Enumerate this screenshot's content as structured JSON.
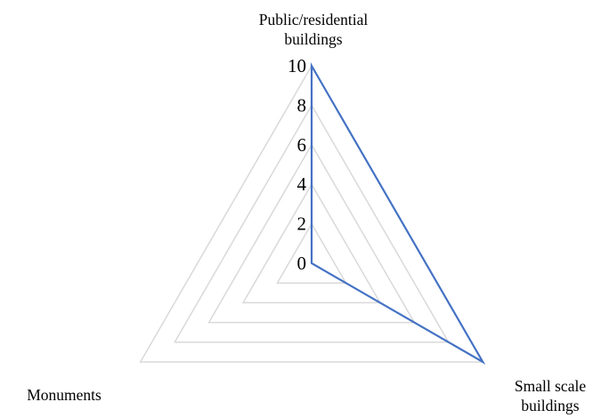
{
  "chart_data": {
    "type": "radar",
    "categories": [
      "Public/residential buildings",
      "Small scale buildings",
      "Monuments"
    ],
    "category_label_lines": [
      [
        "Public/residential",
        "buildings"
      ],
      [
        "Small scale",
        "buildings"
      ],
      [
        "Monuments"
      ]
    ],
    "rlim": [
      0,
      10
    ],
    "ticks": [
      0,
      2,
      4,
      6,
      8,
      10
    ],
    "tick_labels": [
      "0",
      "2",
      "4",
      "6",
      "8",
      "10"
    ],
    "series": [
      {
        "values": [
          10,
          10,
          0
        ],
        "color": "#4472c4"
      }
    ],
    "grid_color": "#d9d9d9",
    "grid": true,
    "legend": "none"
  }
}
